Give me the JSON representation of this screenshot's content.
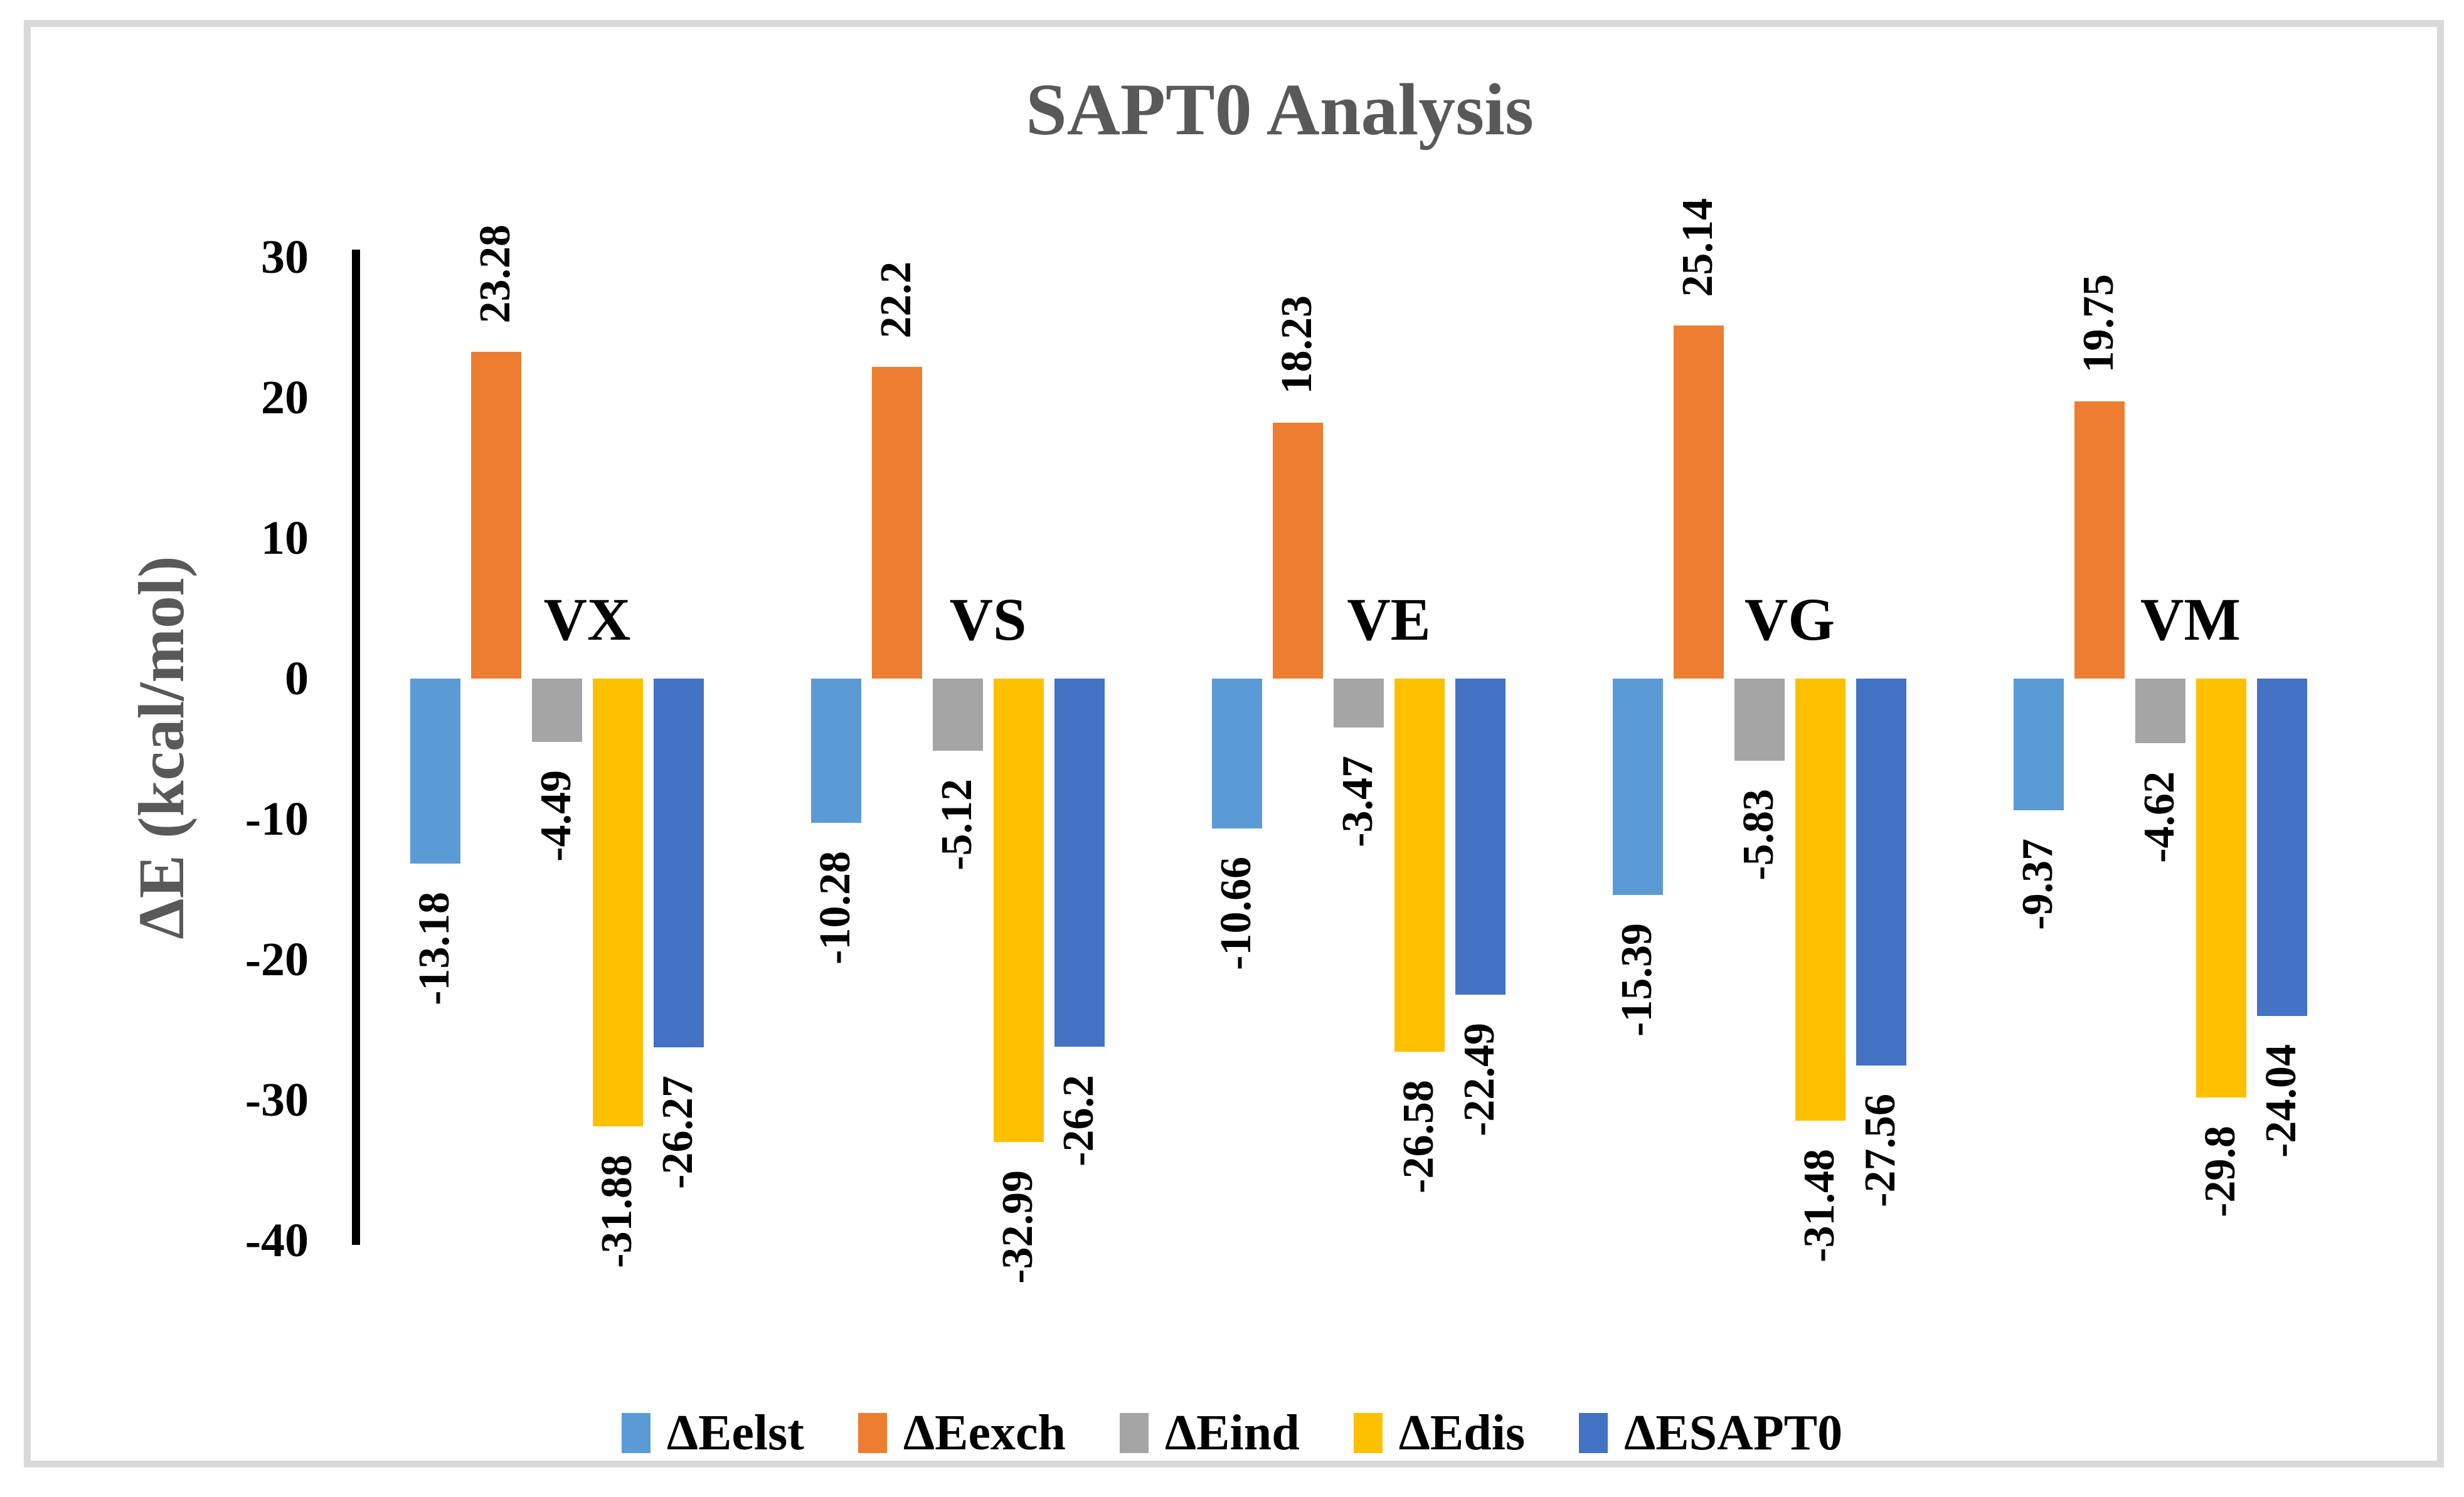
{
  "figure": {
    "title": "SAPT0 Analysis",
    "title_color": "#595959",
    "axis_title_color": "#595959",
    "border_color": "#d9d9d9",
    "background_color": "#ffffff",
    "axis_line_color": "#000000"
  },
  "chart_data": {
    "type": "bar",
    "title": "SAPT0 Analysis",
    "xlabel": "",
    "ylabel": "ΔE (kcal/mol)",
    "ylim": [
      -40,
      30
    ],
    "yticks": [
      30,
      20,
      10,
      0,
      -10,
      -20,
      -30,
      -40
    ],
    "grid": false,
    "legend_position": "bottom",
    "bar_value_labels_rotated": true,
    "categories": [
      "VX",
      "VS",
      "VE",
      "VG",
      "VM"
    ],
    "series": [
      {
        "name": "ΔEelst",
        "color": "#5B9BD5",
        "values": [
          -13.18,
          -10.28,
          -10.66,
          -15.39,
          -9.37
        ],
        "labels": [
          "-13.18",
          "-10.28",
          "-10.66",
          "-15.39",
          "-9.37"
        ]
      },
      {
        "name": "ΔEexch",
        "color": "#ED7D31",
        "values": [
          23.28,
          22.2,
          18.23,
          25.14,
          19.75
        ],
        "labels": [
          "23.28",
          "22.2",
          "18.23",
          "25.14",
          "19.75"
        ]
      },
      {
        "name": "ΔEind",
        "color": "#A5A5A5",
        "values": [
          -4.49,
          -5.12,
          -3.47,
          -5.83,
          -4.62
        ],
        "labels": [
          "-4.49",
          "-5.12",
          "-3.47",
          "-5.83",
          "-4.62"
        ]
      },
      {
        "name": "ΔEdis",
        "color": "#FFC000",
        "values": [
          -31.88,
          -32.99,
          -26.58,
          -31.48,
          -29.8
        ],
        "labels": [
          "-31.88",
          "-32.99",
          "-26.58",
          "-31.48",
          "-29.8"
        ]
      },
      {
        "name": "ΔESAPT0",
        "color": "#4472C4",
        "values": [
          -26.27,
          -26.2,
          -22.49,
          -27.56,
          -24.04
        ],
        "labels": [
          "-26.27",
          "-26.2",
          "-22.49",
          "-27.56",
          "-24.04"
        ]
      }
    ]
  }
}
